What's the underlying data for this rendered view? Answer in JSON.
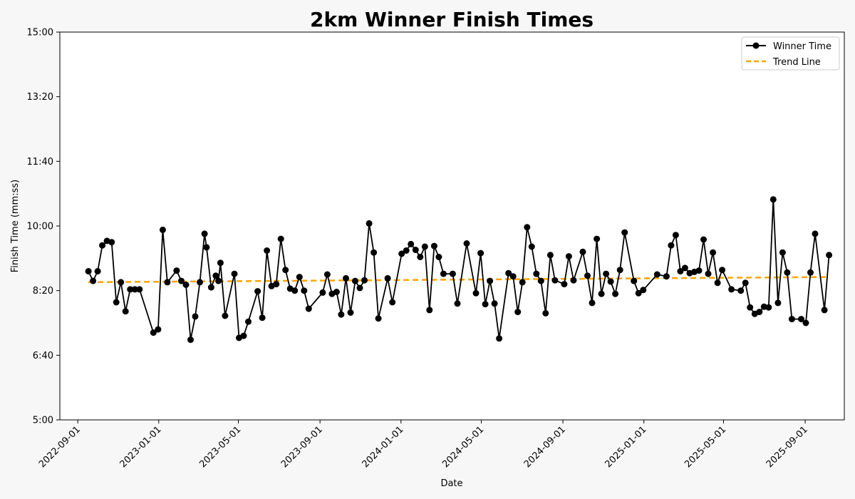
{
  "chart_data": {
    "type": "line",
    "title": "2km Winner Finish Times",
    "xlabel": "Date",
    "ylabel": "Finish Time (mm:ss)",
    "x_ticks": [
      "2022-09-01",
      "2023-01-01",
      "2023-05-01",
      "2023-09-01",
      "2024-01-01",
      "2024-05-01",
      "2024-09-01",
      "2025-01-01",
      "2025-05-01",
      "2025-09-01"
    ],
    "y_ticks": [
      "5:00",
      "6:40",
      "8:20",
      "10:00",
      "11:40",
      "13:20",
      "15:00"
    ],
    "ylim_seconds": [
      300,
      900
    ],
    "xlim": [
      "2022-08-05",
      "2025-10-30"
    ],
    "grid": false,
    "legend_position": "top-right",
    "series": [
      {
        "name": "Winner Time",
        "color": "#000000",
        "marker": "circle",
        "points": [
          [
            "2022-09-17",
            530
          ],
          [
            "2022-09-24",
            515
          ],
          [
            "2022-10-01",
            530
          ],
          [
            "2022-10-08",
            570
          ],
          [
            "2022-10-15",
            577
          ],
          [
            "2022-10-22",
            575
          ],
          [
            "2022-10-29",
            482
          ],
          [
            "2022-11-05",
            513
          ],
          [
            "2022-11-12",
            468
          ],
          [
            "2022-11-19",
            502
          ],
          [
            "2022-11-26",
            502
          ],
          [
            "2022-12-03",
            502
          ],
          [
            "2022-12-24",
            435
          ],
          [
            "2022-12-31",
            440
          ],
          [
            "2023-01-07",
            594
          ],
          [
            "2023-01-14",
            513
          ],
          [
            "2023-01-28",
            531
          ],
          [
            "2023-02-04",
            515
          ],
          [
            "2023-02-11",
            509
          ],
          [
            "2023-02-18",
            424
          ],
          [
            "2023-02-25",
            460
          ],
          [
            "2023-03-04",
            513
          ],
          [
            "2023-03-11",
            588
          ],
          [
            "2023-03-14",
            567
          ],
          [
            "2023-03-21",
            505
          ],
          [
            "2023-03-28",
            523
          ],
          [
            "2023-04-01",
            515
          ],
          [
            "2023-04-04",
            543
          ],
          [
            "2023-04-11",
            461
          ],
          [
            "2023-04-25",
            526
          ],
          [
            "2023-05-02",
            427
          ],
          [
            "2023-05-09",
            430
          ],
          [
            "2023-05-16",
            452
          ],
          [
            "2023-05-30",
            499
          ],
          [
            "2023-06-06",
            458
          ],
          [
            "2023-06-13",
            562
          ],
          [
            "2023-06-20",
            507
          ],
          [
            "2023-06-27",
            510
          ],
          [
            "2023-07-04",
            580
          ],
          [
            "2023-07-11",
            532
          ],
          [
            "2023-07-18",
            503
          ],
          [
            "2023-07-25",
            500
          ],
          [
            "2023-08-01",
            521
          ],
          [
            "2023-08-08",
            500
          ],
          [
            "2023-08-15",
            472
          ],
          [
            "2023-09-05",
            497
          ],
          [
            "2023-09-12",
            525
          ],
          [
            "2023-09-19",
            495
          ],
          [
            "2023-09-26",
            498
          ],
          [
            "2023-10-03",
            463
          ],
          [
            "2023-10-10",
            519
          ],
          [
            "2023-10-17",
            466
          ],
          [
            "2023-10-24",
            515
          ],
          [
            "2023-10-31",
            504
          ],
          [
            "2023-11-07",
            516
          ],
          [
            "2023-11-14",
            604
          ],
          [
            "2023-11-21",
            559
          ],
          [
            "2023-11-28",
            457
          ],
          [
            "2023-12-12",
            519
          ],
          [
            "2023-12-19",
            482
          ],
          [
            "2024-01-02",
            557
          ],
          [
            "2024-01-09",
            562
          ],
          [
            "2024-01-16",
            572
          ],
          [
            "2024-01-23",
            563
          ],
          [
            "2024-01-30",
            552
          ],
          [
            "2024-02-06",
            568
          ],
          [
            "2024-02-13",
            470
          ],
          [
            "2024-02-20",
            569
          ],
          [
            "2024-02-27",
            552
          ],
          [
            "2024-03-05",
            526
          ],
          [
            "2024-03-19",
            526
          ],
          [
            "2024-03-26",
            480
          ],
          [
            "2024-04-09",
            573
          ],
          [
            "2024-04-23",
            496
          ],
          [
            "2024-04-30",
            558
          ],
          [
            "2024-05-07",
            479
          ],
          [
            "2024-05-14",
            515
          ],
          [
            "2024-05-21",
            480
          ],
          [
            "2024-05-28",
            426
          ],
          [
            "2024-06-11",
            527
          ],
          [
            "2024-06-18",
            522
          ],
          [
            "2024-06-25",
            467
          ],
          [
            "2024-07-02",
            513
          ],
          [
            "2024-07-09",
            598
          ],
          [
            "2024-07-16",
            568
          ],
          [
            "2024-07-23",
            526
          ],
          [
            "2024-07-30",
            515
          ],
          [
            "2024-08-06",
            465
          ],
          [
            "2024-08-13",
            555
          ],
          [
            "2024-08-20",
            516
          ],
          [
            "2024-09-03",
            510
          ],
          [
            "2024-09-10",
            553
          ],
          [
            "2024-09-17",
            516
          ],
          [
            "2024-10-01",
            560
          ],
          [
            "2024-10-08",
            523
          ],
          [
            "2024-10-15",
            481
          ],
          [
            "2024-10-22",
            580
          ],
          [
            "2024-10-29",
            495
          ],
          [
            "2024-11-05",
            526
          ],
          [
            "2024-11-12",
            514
          ],
          [
            "2024-11-19",
            495
          ],
          [
            "2024-11-26",
            532
          ],
          [
            "2024-12-03",
            590
          ],
          [
            "2024-12-17",
            515
          ],
          [
            "2024-12-24",
            496
          ],
          [
            "2024-12-31",
            501
          ],
          [
            "2025-01-21",
            525
          ],
          [
            "2025-02-04",
            522
          ],
          [
            "2025-02-11",
            570
          ],
          [
            "2025-02-18",
            586
          ],
          [
            "2025-02-25",
            530
          ],
          [
            "2025-03-04",
            535
          ],
          [
            "2025-03-11",
            527
          ],
          [
            "2025-03-18",
            529
          ],
          [
            "2025-03-25",
            531
          ],
          [
            "2025-04-01",
            579
          ],
          [
            "2025-04-08",
            526
          ],
          [
            "2025-04-15",
            559
          ],
          [
            "2025-04-22",
            512
          ],
          [
            "2025-04-29",
            532
          ],
          [
            "2025-05-13",
            502
          ],
          [
            "2025-05-27",
            500
          ],
          [
            "2025-06-03",
            512
          ],
          [
            "2025-06-10",
            474
          ],
          [
            "2025-06-17",
            464
          ],
          [
            "2025-06-24",
            467
          ],
          [
            "2025-07-01",
            475
          ],
          [
            "2025-07-08",
            474
          ],
          [
            "2025-07-15",
            641
          ],
          [
            "2025-07-22",
            481
          ],
          [
            "2025-07-29",
            559
          ],
          [
            "2025-08-05",
            528
          ],
          [
            "2025-08-12",
            456
          ],
          [
            "2025-08-26",
            456
          ],
          [
            "2025-09-02",
            450
          ],
          [
            "2025-09-09",
            528
          ],
          [
            "2025-09-16",
            588
          ],
          [
            "2025-09-30",
            470
          ],
          [
            "2025-10-07",
            555
          ]
        ]
      },
      {
        "name": "Trend Line",
        "color": "#ffa500",
        "style": "dashed",
        "points": [
          [
            "2022-09-17",
            513
          ],
          [
            "2025-10-07",
            521
          ]
        ]
      }
    ]
  }
}
